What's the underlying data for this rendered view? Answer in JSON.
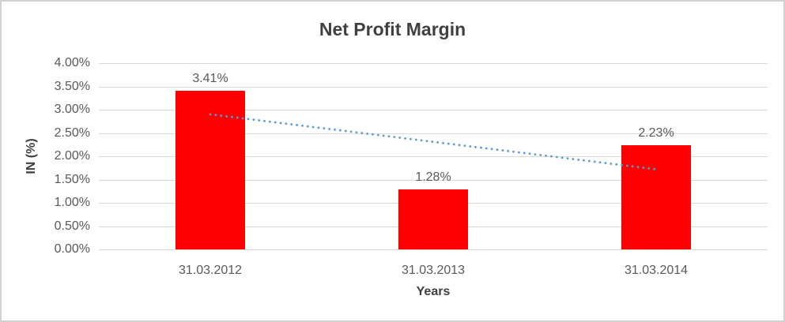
{
  "chart_data": {
    "type": "bar",
    "title": "Net Profit Margin",
    "xlabel": "Years",
    "ylabel": "IN (%)",
    "categories": [
      "31.03.2012",
      "31.03.2013",
      "31.03.2014"
    ],
    "values": [
      3.41,
      1.28,
      2.23
    ],
    "data_labels": [
      "3.41%",
      "1.28%",
      "2.23%"
    ],
    "ylim": [
      0,
      4
    ],
    "ytick_step": 0.5,
    "ytick_labels": [
      "0.00%",
      "0.50%",
      "1.00%",
      "1.50%",
      "2.00%",
      "2.50%",
      "3.00%",
      "3.50%",
      "4.00%"
    ],
    "grid": true,
    "legend": "none",
    "bar_color": "#ff0000",
    "trendline": {
      "type": "linear",
      "style": "dotted",
      "color": "#5b9bd5",
      "start_value": 2.9,
      "end_value": 1.72
    },
    "colors": {
      "title_text": "#404040",
      "tick_text": "#595959",
      "gridline": "#d9d9d9",
      "border": "#d2d2d2"
    }
  }
}
